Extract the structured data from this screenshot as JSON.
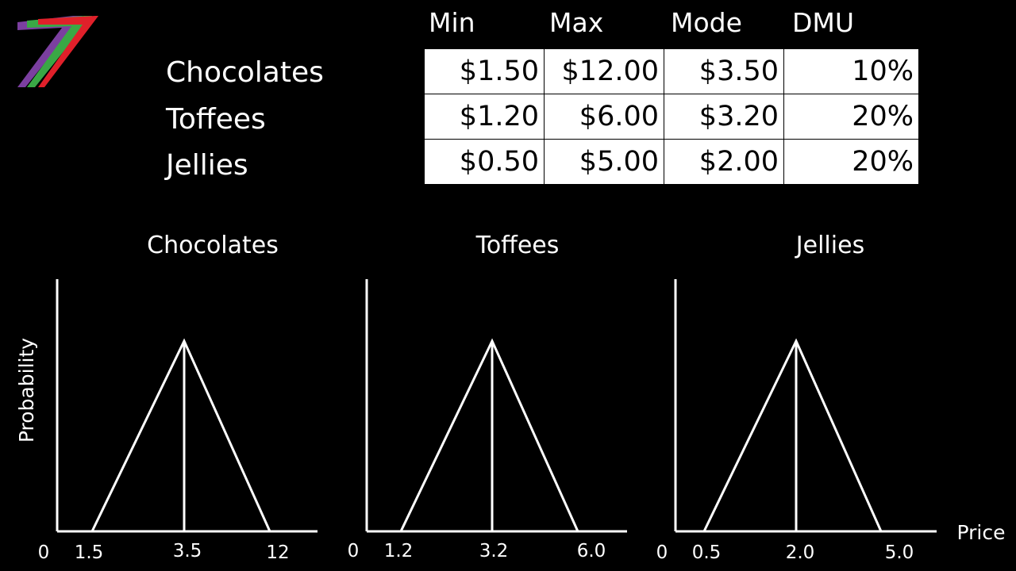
{
  "table": {
    "headers": [
      "Min",
      "Max",
      "Mode",
      "DMU"
    ],
    "rows": [
      {
        "label": "Chocolates",
        "cells": [
          "$1.50",
          "$12.00",
          "$3.50",
          "10%"
        ]
      },
      {
        "label": "Toffees",
        "cells": [
          "$1.20",
          "$6.00",
          "$3.20",
          "20%"
        ]
      },
      {
        "label": "Jellies",
        "cells": [
          "$0.50",
          "$5.00",
          "$2.00",
          "20%"
        ]
      }
    ]
  },
  "charts": {
    "ylabel": "Probability",
    "xlabel": "Price",
    "origin_label": "0",
    "items": [
      {
        "title": "Chocolates",
        "min": 1.5,
        "mode": 3.5,
        "max": 12,
        "min_label": "1.5",
        "mode_label": "3.5",
        "max_label": "12"
      },
      {
        "title": "Toffees",
        "min": 1.2,
        "mode": 3.2,
        "max": 6.0,
        "min_label": "1.2",
        "mode_label": "3.2",
        "max_label": "6.0"
      },
      {
        "title": "Jellies",
        "min": 0.5,
        "mode": 2.0,
        "max": 5.0,
        "min_label": "0.5",
        "mode_label": "2.0",
        "max_label": "5.0"
      }
    ]
  },
  "colors": {
    "background": "#000000",
    "foreground": "#ffffff",
    "logo": [
      "#7b3fa0",
      "#3aa845",
      "#e0202a"
    ]
  },
  "logo_icon": "seven-stripes-logo-icon"
}
